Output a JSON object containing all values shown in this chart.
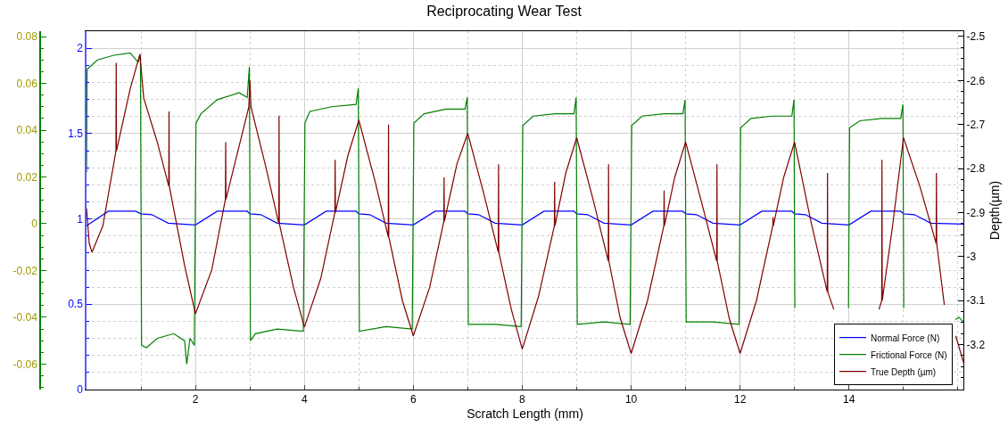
{
  "chart_data": {
    "type": "line",
    "title": "Reciprocating Wear Test",
    "xlabel": "Scratch Length (mm)",
    "y3label": "Depth(µm)",
    "xlim": [
      0,
      16.1
    ],
    "xticks": [
      2,
      4,
      6,
      8,
      10,
      12,
      14
    ],
    "ylim": [
      0,
      2.1
    ],
    "yticks": [
      0,
      0.5,
      1,
      1.5,
      2
    ],
    "y2lim": [
      -0.0709,
      0.0823
    ],
    "y2ticks": [
      -0.06,
      -0.04,
      -0.02,
      0,
      0.02,
      0.04,
      0.06,
      0.08
    ],
    "y3lim": [
      -3.302,
      -2.488
    ],
    "y3ticks": [
      -3.2,
      -3.1,
      -3,
      -2.9,
      -2.8,
      -2.7,
      -2.6,
      -2.5
    ],
    "grid": true,
    "legend": "bottom right",
    "series": [
      {
        "name": "Normal Force (N)",
        "color": "#0000ff",
        "axis": "y",
        "x": [
          0,
          0.4,
          0.9,
          1.0,
          1.2,
          1.5,
          2.0,
          2.4,
          2.95,
          3.0,
          3.2,
          3.5,
          4.0,
          4.4,
          4.95,
          5.0,
          5.2,
          5.5,
          6.0,
          6.4,
          6.95,
          7.0,
          7.2,
          7.5,
          8.0,
          8.4,
          8.95,
          9.0,
          9.2,
          9.5,
          10.0,
          10.4,
          10.95,
          11.0,
          11.2,
          11.5,
          12.0,
          12.4,
          12.95,
          13.0,
          13.2,
          13.5,
          14.0,
          14.4,
          14.95,
          15.0,
          15.2,
          15.5,
          16.1
        ],
        "values": [
          0.96,
          1.045,
          1.045,
          1.03,
          1.025,
          0.975,
          0.965,
          1.045,
          1.045,
          1.03,
          1.025,
          0.975,
          0.965,
          1.045,
          1.045,
          1.03,
          1.025,
          0.975,
          0.965,
          1.045,
          1.045,
          1.03,
          1.025,
          0.975,
          0.965,
          1.045,
          1.045,
          1.03,
          1.025,
          0.975,
          0.965,
          1.045,
          1.045,
          1.03,
          1.025,
          0.975,
          0.965,
          1.045,
          1.045,
          1.03,
          1.025,
          0.975,
          0.965,
          1.045,
          1.045,
          1.03,
          1.025,
          0.975,
          0.97
        ]
      },
      {
        "name": "Frictional Force (N)",
        "color": "#008000",
        "axis": "y2",
        "x": [
          0,
          0.01,
          0.2,
          0.5,
          0.8,
          0.95,
          0.99,
          1.01,
          1.1,
          1.3,
          1.6,
          1.8,
          1.84,
          1.9,
          1.98,
          2.01,
          2.1,
          2.4,
          2.8,
          2.95,
          2.99,
          3.01,
          3.1,
          3.5,
          3.98,
          4.01,
          4.1,
          4.5,
          4.95,
          4.99,
          5.01,
          5.5,
          5.98,
          6.01,
          6.2,
          6.6,
          6.95,
          6.99,
          7.01,
          7.5,
          7.98,
          8.01,
          8.2,
          8.6,
          8.95,
          8.99,
          9.01,
          9.5,
          9.98,
          10.01,
          10.2,
          10.6,
          10.95,
          10.99,
          11.01,
          11.5,
          11.98,
          12.01,
          12.2,
          12.6,
          12.95,
          12.99,
          13.005,
          13.5,
          13.99,
          14.01,
          14.2,
          14.6,
          14.95,
          14.99,
          15.005,
          15.5,
          15.95,
          16.02,
          16.1
        ],
        "values": [
          0.022,
          0.066,
          0.07,
          0.072,
          0.073,
          0.069,
          0.072,
          -0.052,
          -0.053,
          -0.049,
          -0.047,
          -0.05,
          -0.06,
          -0.049,
          -0.052,
          0.043,
          0.047,
          0.053,
          0.056,
          0.054,
          0.067,
          -0.05,
          -0.047,
          -0.045,
          -0.046,
          0.043,
          0.048,
          0.05,
          0.051,
          0.058,
          -0.046,
          -0.044,
          -0.045,
          0.043,
          0.047,
          0.049,
          0.049,
          0.054,
          -0.043,
          -0.043,
          -0.044,
          0.042,
          0.046,
          0.047,
          0.047,
          0.054,
          -0.043,
          -0.042,
          -0.043,
          0.042,
          0.046,
          0.047,
          0.047,
          0.053,
          -0.042,
          -0.042,
          -0.043,
          0.041,
          0.045,
          0.046,
          0.046,
          0.053,
          -0.036,
          null,
          -0.036,
          0.041,
          0.044,
          0.045,
          0.045,
          0.051,
          -0.036,
          null,
          -0.041,
          -0.04,
          -0.042
        ]
      },
      {
        "name": "True Depth (µm)",
        "color": "#800000",
        "axis": "y3",
        "x": [
          0,
          0.05,
          0.1,
          0.3,
          0.54,
          0.545,
          0.55,
          0.8,
          0.98,
          1.05,
          1.3,
          1.51,
          1.515,
          1.52,
          1.8,
          2.0,
          2.3,
          2.55,
          2.555,
          2.56,
          2.8,
          2.98,
          3.0,
          3.02,
          3.3,
          3.53,
          3.535,
          3.54,
          3.8,
          4.0,
          4.3,
          4.56,
          4.565,
          4.57,
          4.8,
          5.0,
          5.3,
          5.54,
          5.545,
          5.55,
          5.8,
          6.0,
          6.3,
          6.56,
          6.565,
          6.57,
          6.8,
          7.0,
          7.3,
          7.56,
          7.565,
          7.57,
          7.8,
          8.0,
          8.3,
          8.59,
          8.595,
          8.6,
          8.8,
          9.0,
          9.3,
          9.58,
          9.585,
          9.59,
          9.8,
          10.0,
          10.3,
          10.6,
          10.605,
          10.61,
          10.8,
          11.0,
          11.3,
          11.57,
          11.575,
          11.58,
          11.8,
          12.0,
          12.3,
          12.6,
          12.605,
          12.61,
          12.8,
          13.0,
          13.3,
          13.6,
          13.605,
          13.61,
          13.72,
          14.0,
          14.55,
          14.6,
          14.605,
          14.61,
          14.8,
          15.0,
          15.3,
          15.6,
          15.605,
          15.61,
          15.75,
          15.85,
          15.96,
          16.1
        ],
        "values": [
          -2.89,
          -2.97,
          -2.99,
          -2.93,
          -2.76,
          -2.56,
          -2.76,
          -2.62,
          -2.54,
          -2.64,
          -2.74,
          -2.84,
          -2.67,
          -2.84,
          -3.02,
          -3.13,
          -3.03,
          -2.87,
          -2.74,
          -2.87,
          -2.75,
          -2.66,
          -2.6,
          -2.66,
          -2.8,
          -2.925,
          -2.68,
          -2.925,
          -3.07,
          -3.16,
          -3.05,
          -2.9,
          -2.78,
          -2.9,
          -2.77,
          -2.69,
          -2.83,
          -2.955,
          -2.7,
          -2.955,
          -3.1,
          -3.18,
          -3.07,
          -2.92,
          -2.82,
          -2.92,
          -2.79,
          -2.72,
          -2.86,
          -2.99,
          -2.79,
          -2.99,
          -3.12,
          -3.21,
          -3.09,
          -2.93,
          -2.83,
          -2.93,
          -2.81,
          -2.73,
          -2.87,
          -3.01,
          -2.79,
          -3.01,
          -3.14,
          -3.22,
          -3.1,
          -2.93,
          -2.85,
          -2.93,
          -2.82,
          -2.74,
          -2.88,
          -3.01,
          -2.79,
          -3.01,
          -3.14,
          -3.22,
          -3.1,
          -2.93,
          -2.91,
          -2.93,
          -2.82,
          -2.74,
          -2.92,
          -3.08,
          -2.81,
          -3.08,
          -3.12,
          null,
          -3.12,
          -3.1,
          -2.78,
          -3.1,
          -2.93,
          -2.73,
          -2.84,
          -2.97,
          -2.81,
          -2.97,
          -3.11,
          null,
          -3.18,
          -3.24
        ]
      }
    ]
  }
}
